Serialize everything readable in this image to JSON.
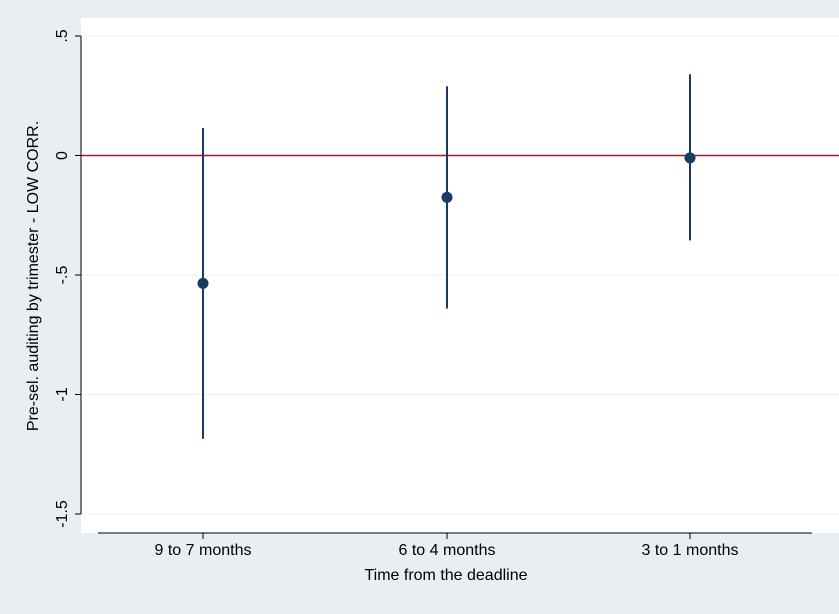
{
  "chart_data": {
    "type": "scatter",
    "subtype": "point-with-confidence-interval",
    "categories": [
      "9 to 7 months",
      "6 to 4 months",
      "3 to 1 months"
    ],
    "series": [
      {
        "values": [
          -0.535,
          -0.175,
          -0.01
        ],
        "ci_lower": [
          -1.185,
          -0.64,
          -0.355
        ],
        "ci_upper": [
          0.115,
          0.29,
          0.34
        ]
      }
    ],
    "reference_line": {
      "y": 0,
      "color": "#9b1b30"
    },
    "xlabel": "Time from the deadline",
    "ylabel": "Pre-sel. auditing by trimester - LOW CORR.",
    "ylim": [
      -1.5,
      0.5
    ],
    "yticks": [
      -1.5,
      -1,
      -0.5,
      0,
      0.5
    ],
    "ytick_labels": [
      "-1.5",
      "-1",
      "-.5",
      "0",
      ".5"
    ],
    "grid": true,
    "colors": {
      "background": "#e8eef2",
      "plot_area": "#ffffff",
      "marker": "#1a3a64",
      "ci_line": "#1a3a64",
      "gridline": "#eef2f5"
    }
  }
}
